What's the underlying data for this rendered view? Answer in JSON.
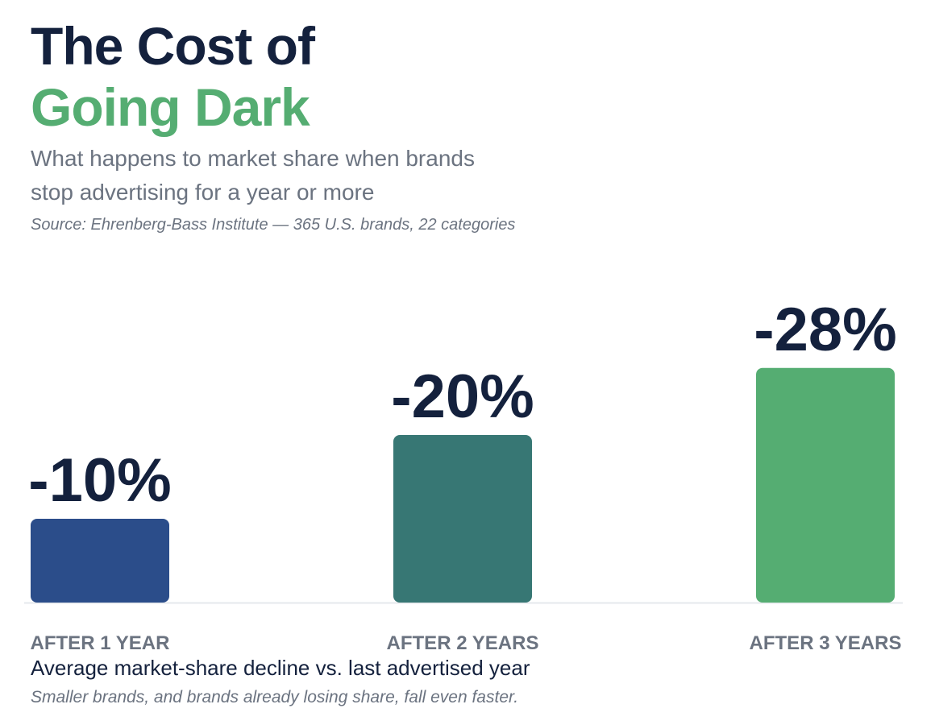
{
  "header": {
    "title_line1": "The Cost of",
    "title_line2": "Going Dark",
    "subtitle_line1": "What happens to market share when brands",
    "subtitle_line2": "stop advertising for a year or more",
    "source": "Source: Ehrenberg-Bass Institute — 365 U.S. brands, 22 categories"
  },
  "colors": {
    "title": "#14213d",
    "accent": "#55ad72",
    "muted": "#6b7380"
  },
  "chart_data": {
    "type": "bar",
    "categories": [
      "AFTER 1 YEAR",
      "AFTER 2 YEARS",
      "AFTER 3 YEARS"
    ],
    "values": [
      -10,
      -20,
      -28
    ],
    "value_labels": [
      "-10%",
      "-20%",
      "-28%"
    ],
    "bar_colors": [
      "#2b4d8a",
      "#377774",
      "#55ad72"
    ],
    "unit": "%",
    "ylim": [
      0,
      -28
    ],
    "grid": false,
    "legend": "none"
  },
  "footer": {
    "caption": "Average market-share decline vs. last advertised year",
    "note": "Smaller brands, and brands already losing share, fall even faster."
  }
}
